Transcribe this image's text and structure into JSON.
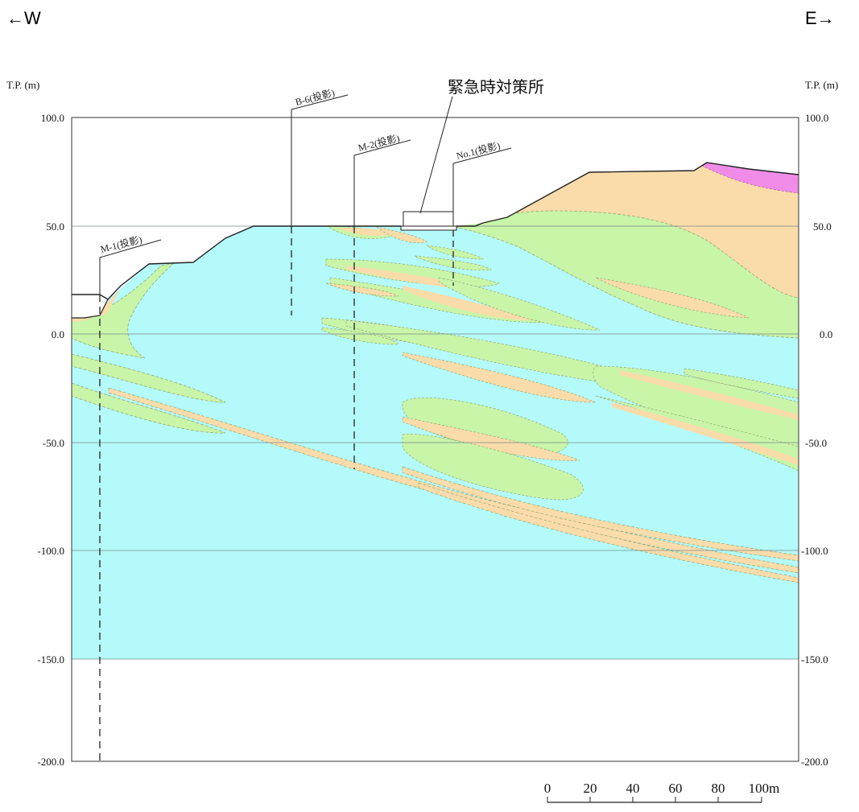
{
  "directions": {
    "west": "←W",
    "east": "E→"
  },
  "axis": {
    "unit_label_left": "T.P. (m)",
    "unit_label_right": "T.P. (m)",
    "ticks": [
      "100.0",
      "50.0",
      "0.0",
      "-50.0",
      "-100.0",
      "-150.0",
      "-200.0"
    ]
  },
  "building_label": "緊急時対策所",
  "boreholes": [
    "M-1(投影)",
    "B-6(投影)",
    "M-2(投影)",
    "No.1(投影)"
  ],
  "scale_bar": {
    "labels": [
      "0",
      "20",
      "40",
      "60",
      "80",
      "100m"
    ]
  },
  "colors": {
    "blue_unit": "#b4fafa",
    "green_unit": "#c8f5a8",
    "tan_unit": "#fadcaa",
    "pink_unit": "#f08ce8"
  }
}
